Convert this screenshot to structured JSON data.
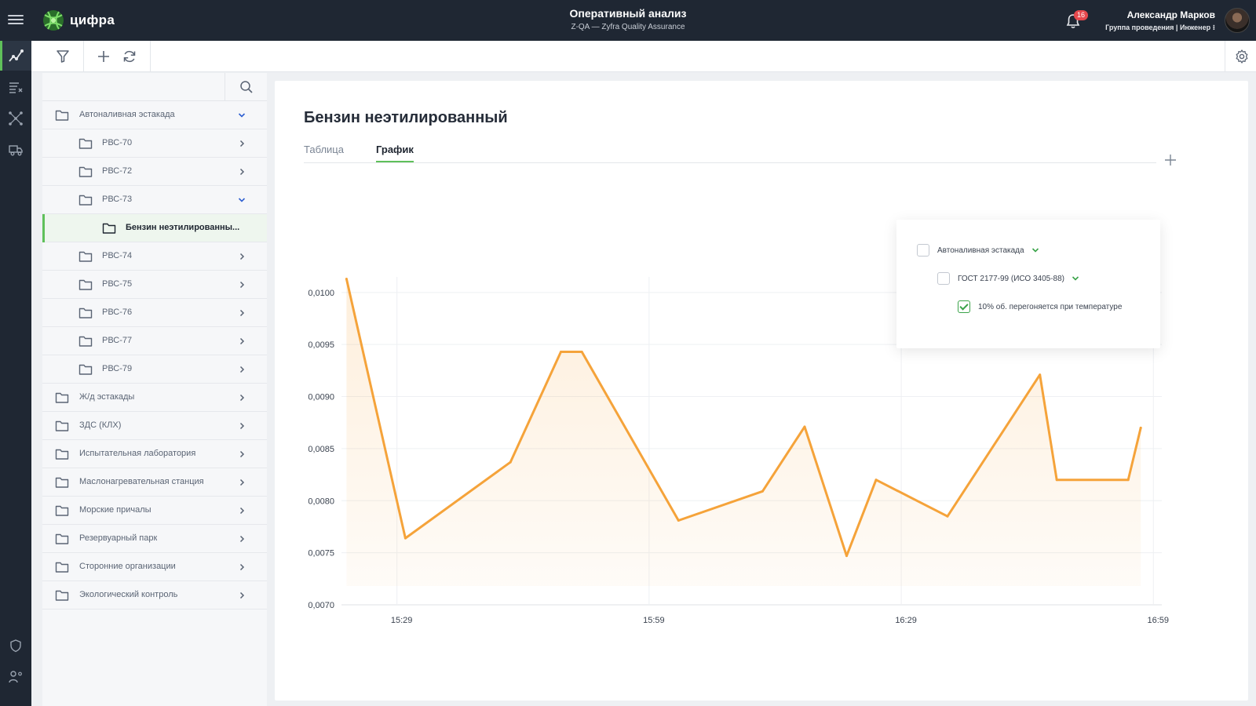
{
  "header": {
    "logo_text": "цифра",
    "title": "Оперативный анализ",
    "subtitle": "Z-QA — Zyfra Quality Assurance",
    "notifications_count": "16",
    "user_name": "Александр Марков",
    "user_role": "Группа проведения | Инженер ⁝"
  },
  "colors": {
    "accent": "#5fc05a",
    "line": "#f5a33a",
    "header_bg": "#1f2733"
  },
  "rail": {
    "items": [
      {
        "icon": "analysis-chart-icon",
        "active": true
      },
      {
        "icon": "list-filter-icon",
        "active": false
      },
      {
        "icon": "network-icon",
        "active": false
      },
      {
        "icon": "truck-icon",
        "active": false
      },
      {
        "icon": "shield-icon",
        "active": false
      },
      {
        "icon": "users-settings-icon",
        "active": false
      }
    ]
  },
  "toolbar": {
    "icons": [
      "filter-icon",
      "plus-icon",
      "refresh-icon",
      "settings-icon"
    ]
  },
  "tree": {
    "items": [
      {
        "label": "Автоналивная эстакада",
        "level": 0,
        "expanded": true
      },
      {
        "label": "РВС-70",
        "level": 1,
        "expanded": false
      },
      {
        "label": "РВС-72",
        "level": 1,
        "expanded": false
      },
      {
        "label": "РВС-73",
        "level": 1,
        "expanded": true
      },
      {
        "label": "Бензин неэтилированны...",
        "level": 2,
        "selected": true,
        "leaf": true
      },
      {
        "label": "РВС-74",
        "level": 1,
        "expanded": false
      },
      {
        "label": "РВС-75",
        "level": 1,
        "expanded": false
      },
      {
        "label": "РВС-76",
        "level": 1,
        "expanded": false
      },
      {
        "label": "РВС-77",
        "level": 1,
        "expanded": false
      },
      {
        "label": "РВС-79",
        "level": 1,
        "expanded": false
      },
      {
        "label": "Ж/д эстакады",
        "level": 0,
        "expanded": false
      },
      {
        "label": "ЗДС (КЛХ)",
        "level": 0,
        "expanded": false
      },
      {
        "label": "Испытательная лаборатория",
        "level": 0,
        "expanded": false
      },
      {
        "label": "Маслонагревательная станция",
        "level": 0,
        "expanded": false
      },
      {
        "label": "Морские причалы",
        "level": 0,
        "expanded": false
      },
      {
        "label": "Резервуарный парк",
        "level": 0,
        "expanded": false
      },
      {
        "label": "Сторонние организации",
        "level": 0,
        "expanded": false
      },
      {
        "label": "Экологический контроль",
        "level": 0,
        "expanded": false
      }
    ]
  },
  "main": {
    "title": "Бензин неэтилированный",
    "tabs": [
      {
        "label": "Таблица",
        "active": false
      },
      {
        "label": "График",
        "active": true
      }
    ]
  },
  "legend": {
    "items": [
      {
        "label": "Автоналивная эстакада",
        "level": 0,
        "checked": false,
        "chevron": true
      },
      {
        "label": "ГОСТ 2177-99 (ИСО 3405-88)",
        "level": 1,
        "checked": false,
        "chevron": true
      },
      {
        "label": "10% об. перегоняется при температуре",
        "level": 2,
        "checked": true,
        "chevron": false
      }
    ]
  },
  "chart_data": {
    "type": "area",
    "x_tick_labels": [
      "15:29",
      "15:59",
      "16:29",
      "16:59"
    ],
    "x_ticks_minutes": [
      929,
      959,
      989,
      1019
    ],
    "xlim_minutes": [
      922.4,
      1020
    ],
    "y_tick_labels": [
      "0,0100",
      "0,0095",
      "0,0090",
      "0,0085",
      "0,0080",
      "0,0075",
      "0,0070"
    ],
    "ylim": [
      0.007,
      0.0103
    ],
    "grid": true,
    "series": [
      {
        "x_minutes": [
          923,
          930,
          942.5,
          948.5,
          951,
          962.5,
          972.5,
          977.5,
          982.5,
          986,
          994.5,
          1005.5,
          1007.5,
          1016,
          1017.5
        ],
        "values": [
          0.01013,
          0.00764,
          0.00837,
          0.00943,
          0.00943,
          0.00781,
          0.00809,
          0.00871,
          0.00747,
          0.0082,
          0.00785,
          0.00921,
          0.0082,
          0.0082,
          0.0087
        ],
        "color": "#f5a33a"
      }
    ]
  }
}
